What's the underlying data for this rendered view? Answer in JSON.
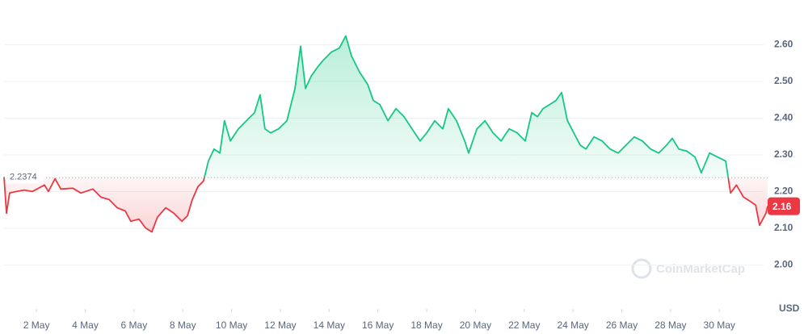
{
  "chart_data": {
    "type": "line",
    "x": [
      0.67,
      0.77,
      0.9,
      1.17,
      1.5,
      1.83,
      2.33,
      2.49,
      2.76,
      3.0,
      3.49,
      3.82,
      4.31,
      4.64,
      4.98,
      5.31,
      5.64,
      5.87,
      6.2,
      6.47,
      6.73,
      6.96,
      7.3,
      7.63,
      7.96,
      8.19,
      8.39,
      8.62,
      8.85,
      9.05,
      9.28,
      9.52,
      9.71,
      9.95,
      10.28,
      10.61,
      10.94,
      11.17,
      11.37,
      11.6,
      11.93,
      12.27,
      12.6,
      12.83,
      13.03,
      13.26,
      13.49,
      13.76,
      14.09,
      14.42,
      14.68,
      14.92,
      15.25,
      15.58,
      15.81,
      16.08,
      16.41,
      16.74,
      17.07,
      17.4,
      17.73,
      18.0,
      18.33,
      18.66,
      18.89,
      19.22,
      19.56,
      19.72,
      20.06,
      20.39,
      20.72,
      21.05,
      21.38,
      21.71,
      22.04,
      22.31,
      22.54,
      22.77,
      23.04,
      23.3,
      23.53,
      23.77,
      24.03,
      24.29,
      24.53,
      24.86,
      25.19,
      25.52,
      25.85,
      26.18,
      26.51,
      26.84,
      27.18,
      27.51,
      27.84,
      28.07,
      28.34,
      28.67,
      29.0,
      29.26,
      29.6,
      29.93,
      30.26,
      30.46,
      30.7,
      30.99,
      31.25,
      31.49,
      31.65,
      31.91,
      31.98
    ],
    "values": [
      2.24,
      2.141,
      2.196,
      2.2,
      2.204,
      2.2,
      2.218,
      2.2,
      2.235,
      2.207,
      2.209,
      2.196,
      2.207,
      2.185,
      2.178,
      2.156,
      2.147,
      2.119,
      2.125,
      2.101,
      2.09,
      2.13,
      2.156,
      2.141,
      2.119,
      2.134,
      2.178,
      2.213,
      2.229,
      2.283,
      2.316,
      2.305,
      2.393,
      2.338,
      2.371,
      2.393,
      2.415,
      2.464,
      2.371,
      2.36,
      2.371,
      2.393,
      2.481,
      2.596,
      2.481,
      2.514,
      2.536,
      2.558,
      2.58,
      2.591,
      2.624,
      2.569,
      2.525,
      2.492,
      2.448,
      2.437,
      2.393,
      2.426,
      2.404,
      2.371,
      2.338,
      2.36,
      2.393,
      2.371,
      2.426,
      2.393,
      2.338,
      2.305,
      2.371,
      2.393,
      2.36,
      2.338,
      2.371,
      2.36,
      2.338,
      2.415,
      2.404,
      2.426,
      2.437,
      2.448,
      2.47,
      2.393,
      2.36,
      2.327,
      2.316,
      2.349,
      2.338,
      2.316,
      2.305,
      2.327,
      2.349,
      2.338,
      2.316,
      2.305,
      2.327,
      2.345,
      2.316,
      2.31,
      2.294,
      2.251,
      2.305,
      2.294,
      2.283,
      2.196,
      2.218,
      2.185,
      2.174,
      2.163,
      2.108,
      2.141,
      2.16
    ],
    "xlim": [
      0.67,
      31.98
    ],
    "xticks": [
      {
        "value": 2,
        "label": "2 May"
      },
      {
        "value": 4,
        "label": "4 May"
      },
      {
        "value": 6,
        "label": "6 May"
      },
      {
        "value": 8,
        "label": "8 May"
      },
      {
        "value": 10,
        "label": "10 May"
      },
      {
        "value": 12,
        "label": "12 May"
      },
      {
        "value": 14,
        "label": "14 May"
      },
      {
        "value": 16,
        "label": "16 May"
      },
      {
        "value": 18,
        "label": "18 May"
      },
      {
        "value": 20,
        "label": "20 May"
      },
      {
        "value": 22,
        "label": "22 May"
      },
      {
        "value": 24,
        "label": "24 May"
      },
      {
        "value": 26,
        "label": "26 May"
      },
      {
        "value": 28,
        "label": "28 May"
      },
      {
        "value": 30,
        "label": "30 May"
      }
    ],
    "ylim": [
      1.88,
      2.7
    ],
    "yticks": [
      {
        "value": 2,
        "label": "2.00"
      },
      {
        "value": 2.1,
        "label": "2.10"
      },
      {
        "value": 2.2,
        "label": "2.20"
      },
      {
        "value": 2.3,
        "label": "2.30"
      },
      {
        "value": 2.4,
        "label": "2.40"
      },
      {
        "value": 2.5,
        "label": "2.50"
      },
      {
        "value": 2.6,
        "label": "2.60"
      }
    ],
    "baseline": 2.2374,
    "current_price": 2.16,
    "up_color": "#16c784",
    "down_color": "#ea3943",
    "currency": "USD",
    "watermark": "CoinMarketCap",
    "grid": true
  }
}
